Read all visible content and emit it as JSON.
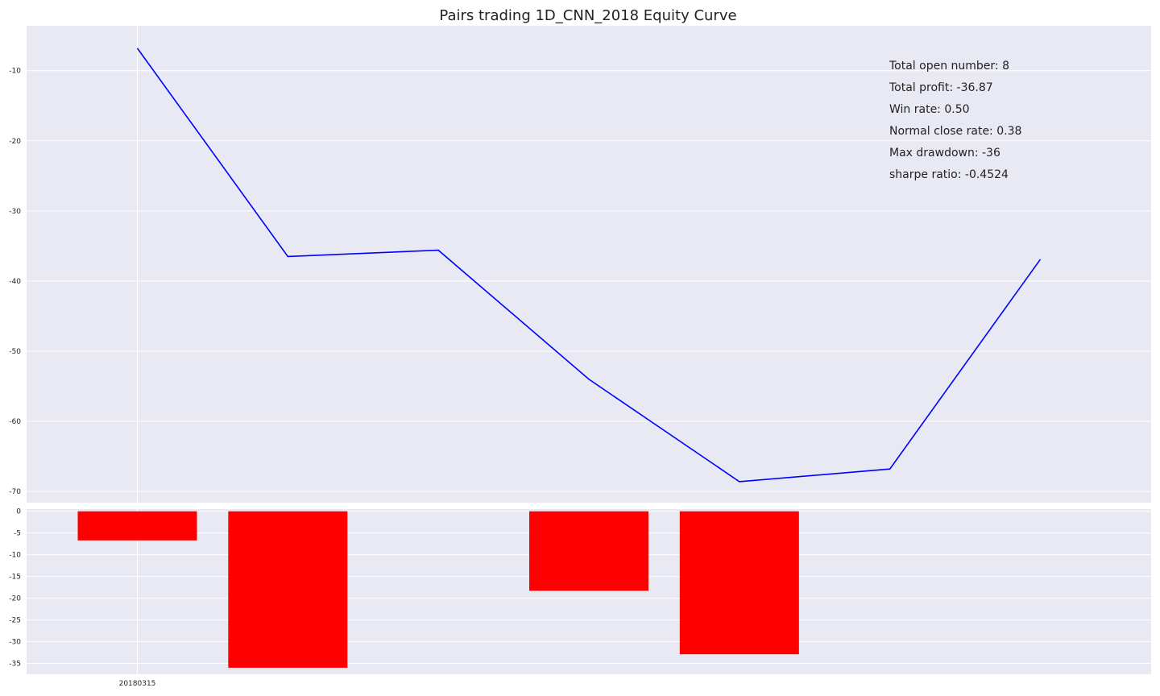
{
  "chart_data": [
    {
      "type": "line",
      "title": "Pairs trading 1D_CNN_2018 Equity Curve",
      "x": [
        0,
        1,
        2,
        3,
        4,
        5,
        6
      ],
      "series": [
        {
          "values": [
            -6.8,
            -36.5,
            -35.6,
            -54.0,
            -68.6,
            -66.8,
            -36.9
          ],
          "color": "#0000ff"
        }
      ],
      "ylim": [
        -71.6,
        -3.6
      ],
      "yticks": [
        -10,
        -20,
        -30,
        -40,
        -50,
        -60,
        -70
      ],
      "grid": true,
      "background": "#e8e9f2",
      "annotations": [
        "Total open number: 8",
        "Total profit: -36.87",
        "Win rate: 0.50",
        "Normal close rate: 0.38",
        "Max drawdown: -36",
        "sharpe ratio: -0.4524"
      ],
      "annotation_placement": "top-right"
    },
    {
      "type": "bar",
      "x": [
        0,
        1,
        2,
        3,
        4,
        5,
        6
      ],
      "xtick_labels": [
        "20180315"
      ],
      "values": [
        -6.7,
        -36.0,
        0,
        -18.3,
        -32.9,
        0,
        0
      ],
      "color": "#ff0000",
      "ylim": [
        -37.5,
        0.5
      ],
      "yticks": [
        0,
        -5,
        -10,
        -15,
        -20,
        -25,
        -30,
        -35
      ],
      "grid": true,
      "background": "#e8e9f2"
    }
  ]
}
